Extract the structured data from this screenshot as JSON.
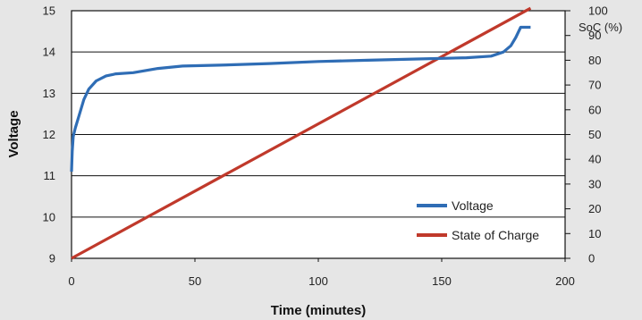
{
  "chart_data": {
    "type": "line",
    "xlabel": "Time (minutes)",
    "ylabel": "Voltage",
    "y2label": "SoC (%)",
    "xlim": [
      0,
      200
    ],
    "ylim": [
      9,
      15
    ],
    "y2lim": [
      0,
      100
    ],
    "x_ticks": [
      0,
      50,
      100,
      150,
      200
    ],
    "y_ticks": [
      9,
      10,
      11,
      12,
      13,
      14,
      15
    ],
    "y2_ticks": [
      0,
      10,
      20,
      30,
      40,
      50,
      60,
      70,
      80,
      90,
      100
    ],
    "grid": "horizontal",
    "legend_position": "bottom-right",
    "series": [
      {
        "name": "Voltage",
        "axis": "left",
        "color": "#2f6db5",
        "points": [
          [
            0,
            11.1
          ],
          [
            0.3,
            11.6
          ],
          [
            0.7,
            11.95
          ],
          [
            1.5,
            12.15
          ],
          [
            3,
            12.45
          ],
          [
            5,
            12.85
          ],
          [
            7,
            13.1
          ],
          [
            10,
            13.3
          ],
          [
            14,
            13.42
          ],
          [
            18,
            13.47
          ],
          [
            25,
            13.5
          ],
          [
            35,
            13.6
          ],
          [
            45,
            13.66
          ],
          [
            60,
            13.68
          ],
          [
            80,
            13.72
          ],
          [
            100,
            13.77
          ],
          [
            120,
            13.8
          ],
          [
            140,
            13.83
          ],
          [
            160,
            13.86
          ],
          [
            170,
            13.9
          ],
          [
            175,
            14.0
          ],
          [
            178,
            14.15
          ],
          [
            180,
            14.35
          ],
          [
            182,
            14.6
          ],
          [
            186,
            14.6
          ]
        ]
      },
      {
        "name": "State of Charge",
        "axis": "right",
        "color": "#c0392b",
        "points": [
          [
            0,
            0
          ],
          [
            186,
            101
          ]
        ]
      }
    ]
  }
}
